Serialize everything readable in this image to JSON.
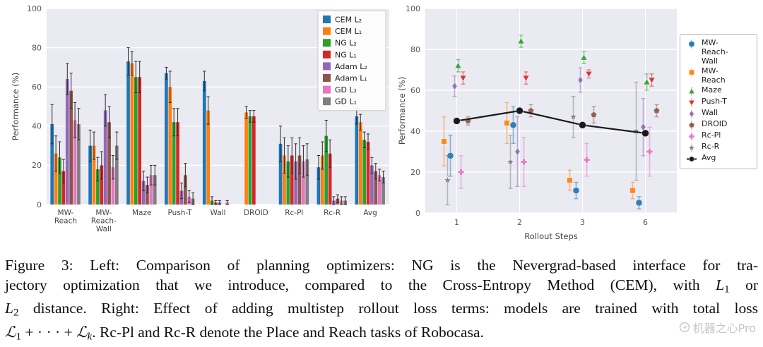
{
  "watermark": {
    "text": "机器之心Pro"
  },
  "figure": {
    "caption_lines": [
      {
        "justify": true,
        "runs": [
          {
            "t": "Figure 3: Left: Comparison of planning optimizers: NG is the Nevergrad-based interface for tra-"
          }
        ]
      },
      {
        "justify": true,
        "runs": [
          {
            "t": "jectory optimization that we introduce, compared to the Cross-Entropy Method (CEM), with "
          },
          {
            "t": "L",
            "s": "i"
          },
          {
            "t": "1",
            "s": "sub"
          },
          {
            "t": " or"
          }
        ]
      },
      {
        "justify": true,
        "runs": [
          {
            "t": "L",
            "s": "i"
          },
          {
            "t": "2",
            "s": "sub"
          },
          {
            "t": " distance. Right: Effect of adding multistep rollout loss terms: models are trained with total loss"
          }
        ]
      },
      {
        "justify": false,
        "runs": [
          {
            "t": "ℒ",
            "s": "cal"
          },
          {
            "t": "1",
            "s": "sub"
          },
          {
            "t": " + · · · + "
          },
          {
            "t": "ℒ",
            "s": "cal"
          },
          {
            "t": "k",
            "s": "isub"
          },
          {
            "t": ". Rc-Pl and Rc-R denote the Place and Reach tasks of Robocasa."
          }
        ]
      }
    ]
  },
  "chart_data": [
    {
      "type": "bar",
      "title": "",
      "xlabel": "",
      "ylabel": "Performance (%)",
      "ylim": [
        0,
        100
      ],
      "yticks": [
        0,
        20,
        40,
        60,
        80,
        100
      ],
      "grid": true,
      "legend_position": "upper right",
      "categories": [
        "MW-Reach",
        "MW-Reach-Wall",
        "Maze",
        "Push-T",
        "Wall",
        "DROID",
        "Rc-Pl",
        "Rc-R",
        "Avg"
      ],
      "category_display": [
        [
          "MW-",
          "Reach"
        ],
        [
          "MW-",
          "Reach-",
          "Wall"
        ],
        [
          "Maze"
        ],
        [
          "Push-T"
        ],
        [
          "Wall"
        ],
        [
          "DROID"
        ],
        [
          "Rc-Pl"
        ],
        [
          "Rc-R"
        ],
        [
          "Avg"
        ]
      ],
      "series": [
        {
          "name": "CEM L₂",
          "color": "#1f77b4",
          "values": [
            41,
            30,
            73,
            67,
            63,
            0,
            31,
            19,
            45
          ],
          "errors": [
            10,
            8,
            7,
            3,
            5,
            0,
            9,
            6,
            4
          ]
        },
        {
          "name": "CEM L₁",
          "color": "#ff7f0e",
          "values": [
            26,
            30,
            72,
            60,
            48,
            47,
            25,
            25,
            42
          ],
          "errors": [
            9,
            7,
            6,
            8,
            7,
            3,
            9,
            7,
            4
          ]
        },
        {
          "name": "NG L₂",
          "color": "#2ca02c",
          "values": [
            24,
            18,
            65,
            42,
            2,
            45,
            22,
            35,
            33
          ],
          "errors": [
            8,
            6,
            8,
            7,
            2,
            3,
            8,
            8,
            4
          ]
        },
        {
          "name": "NG L₁",
          "color": "#d62728",
          "values": [
            17,
            20,
            65,
            42,
            1,
            45,
            25,
            26,
            32
          ],
          "errors": [
            6,
            7,
            8,
            7,
            1,
            3,
            9,
            7,
            4
          ]
        },
        {
          "name": "Adam L₂",
          "color": "#9467bd",
          "values": [
            64,
            48,
            12,
            7,
            1,
            0,
            22,
            2,
            20
          ],
          "errors": [
            8,
            8,
            5,
            4,
            1,
            0,
            9,
            2,
            4
          ]
        },
        {
          "name": "Adam L₁",
          "color": "#8c564b",
          "values": [
            58,
            42,
            10,
            15,
            0,
            0,
            25,
            3,
            17
          ],
          "errors": [
            9,
            8,
            4,
            6,
            0,
            0,
            9,
            2,
            4
          ]
        },
        {
          "name": "GD L₂",
          "color": "#e377c2",
          "values": [
            43,
            19,
            15,
            4,
            1,
            0,
            22,
            2,
            15
          ],
          "errors": [
            9,
            6,
            5,
            3,
            1,
            0,
            8,
            2,
            3
          ]
        },
        {
          "name": "GD L₁",
          "color": "#7f7f7f",
          "values": [
            41,
            30,
            15,
            3,
            0,
            0,
            23,
            2,
            14
          ],
          "errors": [
            8,
            7,
            5,
            3,
            0,
            0,
            8,
            2,
            3
          ]
        }
      ]
    },
    {
      "type": "scatter",
      "title": "",
      "xlabel": "Rollout Steps",
      "ylabel": "Performance (%)",
      "ylim": [
        0,
        100
      ],
      "yticks": [
        0,
        20,
        40,
        60,
        80,
        100
      ],
      "grid": true,
      "legend_position": "right outside",
      "x_categories": [
        "1",
        "2",
        "3",
        "6"
      ],
      "series": [
        {
          "name": "MW-Reach-Wall",
          "color": "#1f77b4",
          "marker": "circle",
          "values": [
            28,
            43,
            11,
            5
          ],
          "errors": [
            10,
            9,
            4,
            3
          ]
        },
        {
          "name": "MW-Reach",
          "color": "#ff7f0e",
          "marker": "square",
          "values": [
            35,
            44,
            16,
            11
          ],
          "errors": [
            12,
            10,
            5,
            4
          ]
        },
        {
          "name": "Maze",
          "color": "#2ca02c",
          "marker": "triangle-up",
          "values": [
            72,
            84,
            76,
            64
          ],
          "errors": [
            3,
            3,
            3,
            4
          ]
        },
        {
          "name": "Push-T",
          "color": "#d62728",
          "marker": "triangle-down",
          "values": [
            66,
            66,
            68,
            65
          ],
          "errors": [
            3,
            3,
            2,
            3
          ]
        },
        {
          "name": "Wall",
          "color": "#9467bd",
          "marker": "diamond",
          "values": [
            62,
            30,
            65,
            42
          ],
          "errors": [
            5,
            17,
            6,
            14
          ]
        },
        {
          "name": "DROID",
          "color": "#8c564b",
          "marker": "pentagon",
          "values": [
            45,
            50,
            48,
            50
          ],
          "errors": [
            2,
            3,
            4,
            3
          ]
        },
        {
          "name": "Rc-Pl",
          "color": "#e377c2",
          "marker": "plus",
          "values": [
            20,
            25,
            26,
            30
          ],
          "errors": [
            8,
            12,
            8,
            12
          ]
        },
        {
          "name": "Rc-R",
          "color": "#7f7f7f",
          "marker": "star",
          "values": [
            16,
            25,
            47,
            40
          ],
          "errors": [
            12,
            13,
            10,
            24
          ]
        },
        {
          "name": "Avg",
          "color": "#1a1a1a",
          "marker": "circle",
          "line": true,
          "values": [
            45,
            50,
            43,
            39
          ],
          "errors": [
            0,
            0,
            0,
            0
          ]
        }
      ]
    }
  ]
}
